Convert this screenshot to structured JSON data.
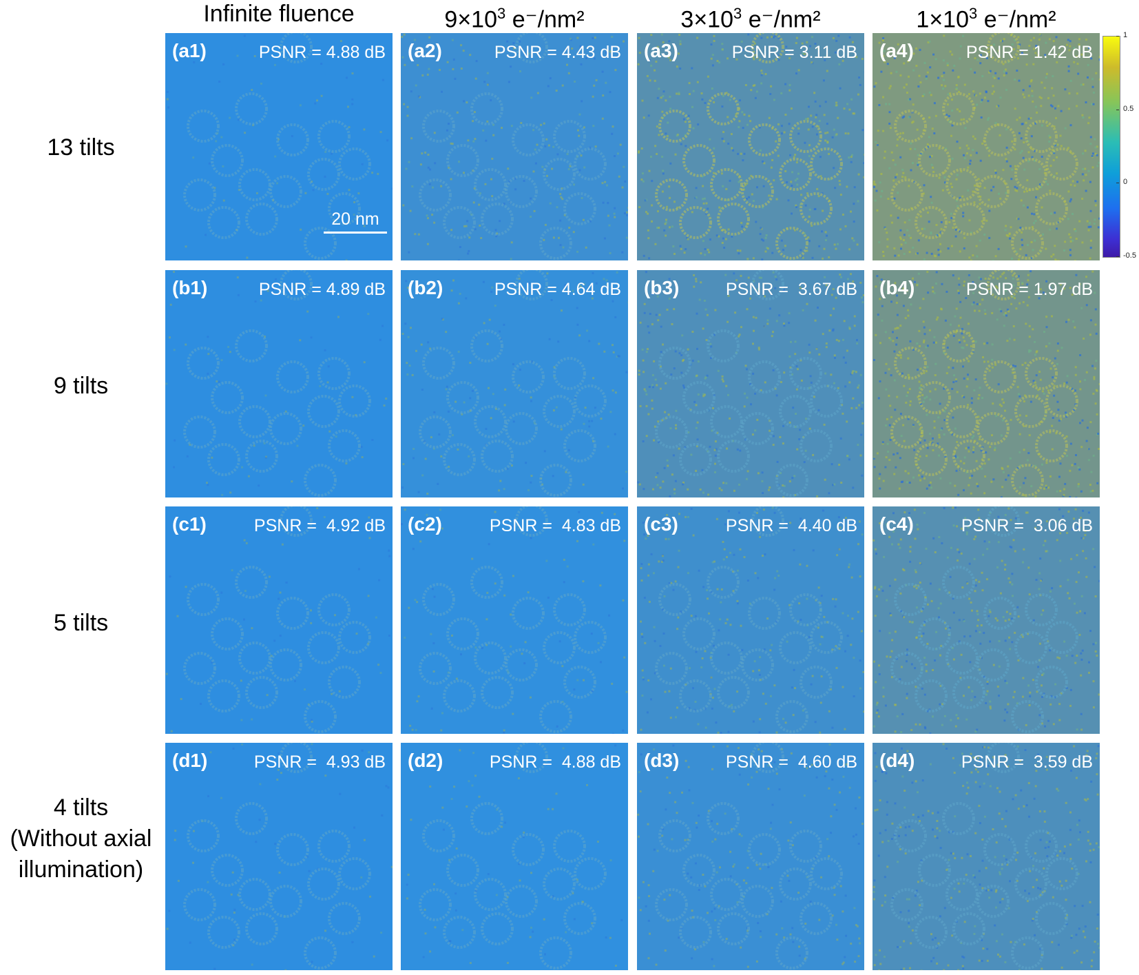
{
  "columns": [
    {
      "main": "Infinite fluence",
      "sup": "",
      "tail": ""
    },
    {
      "main": "9×10",
      "sup": "3",
      "tail": " e⁻/nm²"
    },
    {
      "main": "3×10",
      "sup": "3",
      "tail": " e⁻/nm²"
    },
    {
      "main": "1×10",
      "sup": "3",
      "tail": " e⁻/nm²"
    }
  ],
  "rows": [
    {
      "label": [
        "13 tilts"
      ]
    },
    {
      "label": [
        "9 tilts"
      ]
    },
    {
      "label": [
        "5 tilts"
      ]
    },
    {
      "label": [
        "4 tilts",
        "(Without axial",
        "illumination)"
      ]
    }
  ],
  "panels": [
    [
      {
        "id": "(a1)",
        "psnr": "PSNR = 4.88 dB",
        "noise": 0.1,
        "tint": "#2e8ee0"
      },
      {
        "id": "(a2)",
        "psnr": "PSNR = 4.43 dB",
        "noise": 0.35,
        "tint": "#3d8fd2"
      },
      {
        "id": "(a3)",
        "psnr": "PSNR = 3.11 dB",
        "noise": 0.65,
        "tint": "#5790b0"
      },
      {
        "id": "(a4)",
        "psnr": "PSNR = 1.42 dB",
        "noise": 0.95,
        "tint": "#7f9a80"
      }
    ],
    [
      {
        "id": "(b1)",
        "psnr": "PSNR = 4.89 dB",
        "noise": 0.1,
        "tint": "#2e8ee0"
      },
      {
        "id": "(b2)",
        "psnr": "PSNR = 4.64 dB",
        "noise": 0.22,
        "tint": "#3590da"
      },
      {
        "id": "(b3)",
        "psnr": "PSNR =  3.67 dB",
        "noise": 0.55,
        "tint": "#4f8fba"
      },
      {
        "id": "(b4)",
        "psnr": "PSNR = 1.97 dB",
        "noise": 0.85,
        "tint": "#73958c"
      }
    ],
    [
      {
        "id": "(c1)",
        "psnr": "PSNR =  4.92 dB",
        "noise": 0.08,
        "tint": "#2e8ee0"
      },
      {
        "id": "(c2)",
        "psnr": "PSNR =  4.83 dB",
        "noise": 0.12,
        "tint": "#3190de"
      },
      {
        "id": "(c3)",
        "psnr": "PSNR =  4.40 dB",
        "noise": 0.35,
        "tint": "#3f8fcd"
      },
      {
        "id": "(c4)",
        "psnr": "PSNR =  3.06 dB",
        "noise": 0.6,
        "tint": "#5690b2"
      }
    ],
    [
      {
        "id": "(d1)",
        "psnr": "PSNR =  4.93 dB",
        "noise": 0.08,
        "tint": "#2e8ee0"
      },
      {
        "id": "(d2)",
        "psnr": "PSNR =  4.88 dB",
        "noise": 0.1,
        "tint": "#3090df"
      },
      {
        "id": "(d3)",
        "psnr": "PSNR =  4.60 dB",
        "noise": 0.28,
        "tint": "#3a8fd4"
      },
      {
        "id": "(d4)",
        "psnr": "PSNR =  3.59 dB",
        "noise": 0.5,
        "tint": "#4d8fbc"
      }
    ]
  ],
  "scalebar": {
    "label": "20 nm"
  },
  "colorbar": {
    "ticks": [
      "1",
      "0.5",
      "0",
      "-0.5"
    ],
    "tick_values": [
      1,
      0.5,
      0,
      -0.5
    ],
    "range": [
      -0.5,
      1
    ],
    "colors": [
      "#f9fb0e",
      "#86c55a",
      "#2bbdb5",
      "#1e6fef",
      "#3e1aa8"
    ]
  }
}
